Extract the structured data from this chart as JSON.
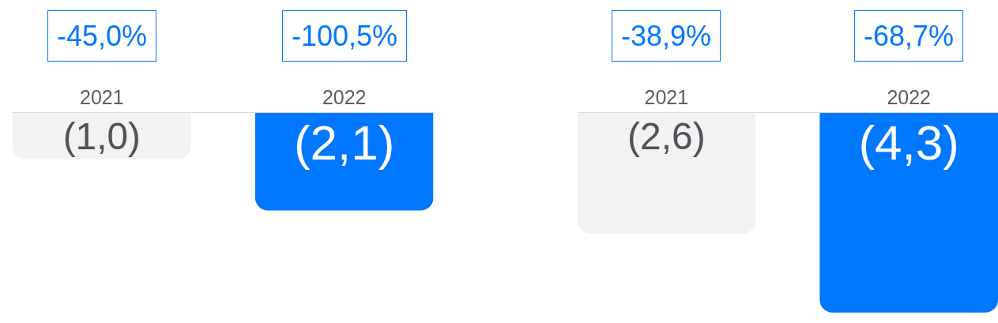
{
  "chart_data": [
    {
      "type": "bar",
      "categories": [
        "2021",
        "2022"
      ],
      "values": [
        -1.0,
        -2.1
      ],
      "colors": [
        "#f2f2f2",
        "#0077ff"
      ],
      "value_labels": [
        "(1,0)",
        "(2,1)"
      ],
      "annotations": [
        "-45,0%",
        "-100,5%"
      ]
    },
    {
      "type": "bar",
      "categories": [
        "2021",
        "2022"
      ],
      "values": [
        -2.6,
        -4.3
      ],
      "colors": [
        "#f2f2f2",
        "#0077ff"
      ],
      "value_labels": [
        "(2,6)",
        "(4,3)"
      ],
      "annotations": [
        "-38,9%",
        "-68,7%"
      ]
    }
  ]
}
